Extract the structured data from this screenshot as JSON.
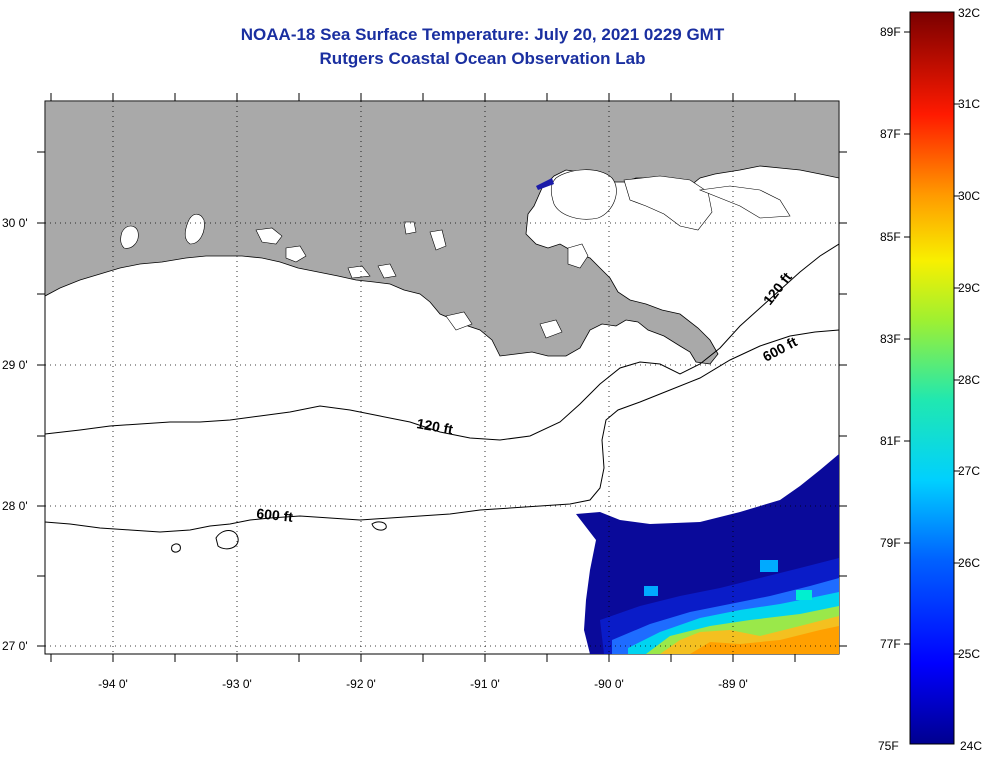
{
  "title": "NOAA-18 Sea Surface Temperature:  July 20, 2021 0229 GMT",
  "subtitle": "Rutgers Coastal Ocean Observation Lab",
  "axes": {
    "longitude_labels": [
      "-94 0'",
      "-93 0'",
      "-92 0'",
      "-91 0'",
      "-90 0'",
      "-89 0'"
    ],
    "latitude_labels": [
      "30 0'",
      "29 0'",
      "28 0'",
      "27 0'"
    ]
  },
  "contours": {
    "upper_120": "120 ft",
    "upper_600": "600 ft",
    "mid_120": "120 ft",
    "lower_600": "600 ft"
  },
  "colorbar": {
    "celsius_labels": [
      "32C",
      "31C",
      "30C",
      "29C",
      "28C",
      "27C",
      "26C",
      "25C",
      "24C"
    ],
    "fahrenheit_labels": [
      "89F",
      "87F",
      "85F",
      "83F",
      "81F",
      "79F",
      "77F",
      "75F"
    ]
  },
  "colors": {
    "land": "#a9a9a9",
    "title": "#1a2fa0"
  }
}
